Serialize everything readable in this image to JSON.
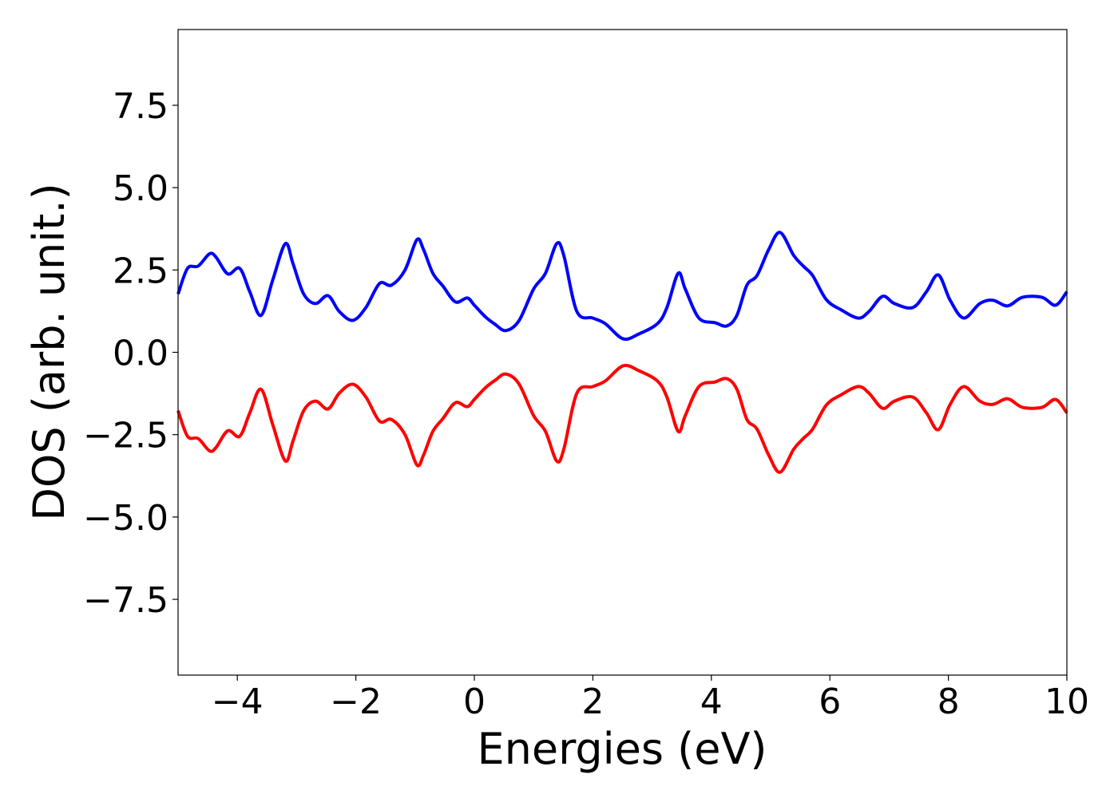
{
  "chart_data": {
    "type": "line",
    "xlabel": "Energies (eV)",
    "ylabel": "DOS (arb. unit.)",
    "x": [
      -5,
      -4.84,
      -4.66,
      -4.47,
      -4.36,
      -4.16,
      -3.96,
      -3.79,
      -3.6,
      -3.4,
      -3.19,
      -3.06,
      -2.88,
      -2.68,
      -2.47,
      -2.28,
      -2.05,
      -1.83,
      -1.6,
      -1.4,
      -1.17,
      -0.97,
      -0.86,
      -0.7,
      -0.53,
      -0.32,
      -0.12,
      0,
      0.19,
      0.35,
      0.53,
      0.75,
      1.0,
      1.2,
      1.39,
      1.51,
      1.73,
      2.0,
      2.21,
      2.51,
      2.78,
      3.09,
      3.25,
      3.44,
      3.56,
      3.79,
      4.06,
      4.26,
      4.43,
      4.6,
      4.77,
      4.97,
      5.16,
      5.39,
      5.55,
      5.71,
      5.94,
      6.19,
      6.48,
      6.66,
      6.89,
      7.09,
      7.4,
      7.63,
      7.83,
      8.03,
      8.26,
      8.53,
      8.75,
      9.0,
      9.25,
      9.58,
      9.81,
      10
    ],
    "series": [
      {
        "color": "#0000ff",
        "values": [
          1.77,
          2.55,
          2.62,
          2.99,
          2.89,
          2.38,
          2.55,
          1.84,
          1.12,
          2.21,
          3.3,
          2.69,
          1.77,
          1.48,
          1.72,
          1.24,
          0.97,
          1.36,
          2.09,
          2.04,
          2.5,
          3.42,
          3.13,
          2.4,
          2.01,
          1.53,
          1.65,
          1.43,
          1.07,
          0.85,
          0.66,
          0.95,
          1.92,
          2.4,
          3.3,
          2.94,
          1.24,
          1.04,
          0.87,
          0.41,
          0.56,
          0.87,
          1.36,
          2.4,
          1.92,
          1.04,
          0.9,
          0.8,
          1.12,
          2.04,
          2.33,
          3.13,
          3.64,
          2.94,
          2.62,
          2.33,
          1.6,
          1.29,
          1.04,
          1.24,
          1.7,
          1.48,
          1.36,
          1.84,
          2.35,
          1.58,
          1.04,
          1.48,
          1.58,
          1.41,
          1.67,
          1.67,
          1.43,
          1.84
        ]
      },
      {
        "color": "#ff0000",
        "values": [
          -1.77,
          -2.55,
          -2.62,
          -2.99,
          -2.89,
          -2.38,
          -2.55,
          -1.84,
          -1.12,
          -2.21,
          -3.3,
          -2.69,
          -1.77,
          -1.48,
          -1.72,
          -1.24,
          -0.97,
          -1.36,
          -2.09,
          -2.04,
          -2.5,
          -3.42,
          -3.13,
          -2.4,
          -2.01,
          -1.53,
          -1.65,
          -1.43,
          -1.07,
          -0.85,
          -0.66,
          -0.95,
          -1.92,
          -2.4,
          -3.3,
          -2.94,
          -1.24,
          -1.04,
          -0.87,
          -0.41,
          -0.56,
          -0.87,
          -1.36,
          -2.4,
          -1.92,
          -1.04,
          -0.9,
          -0.8,
          -1.12,
          -2.04,
          -2.33,
          -3.13,
          -3.64,
          -2.94,
          -2.62,
          -2.33,
          -1.6,
          -1.29,
          -1.04,
          -1.24,
          -1.7,
          -1.48,
          -1.36,
          -1.84,
          -2.35,
          -1.58,
          -1.04,
          -1.48,
          -1.58,
          -1.41,
          -1.67,
          -1.67,
          -1.43,
          -1.84
        ]
      }
    ],
    "xlim": [
      -5,
      10
    ],
    "ylim": [
      -9.8,
      9.8
    ],
    "xticks": [
      {
        "value": -4,
        "label": "−4"
      },
      {
        "value": -2,
        "label": "−2"
      },
      0,
      2,
      4,
      6,
      8,
      10
    ],
    "yticks": [
      {
        "value": -7.5,
        "label": "−7.5"
      },
      {
        "value": -5,
        "label": "−5.0"
      },
      {
        "value": -2.5,
        "label": "−2.5"
      },
      {
        "value": 0,
        "label": "0.0"
      },
      2.5,
      {
        "value": 5,
        "label": "5.0"
      },
      7.5
    ],
    "grid": false
  }
}
